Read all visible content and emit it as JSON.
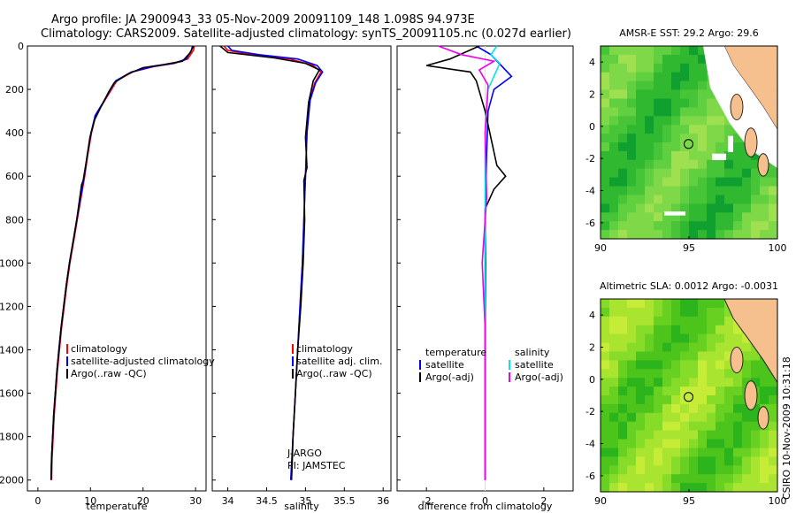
{
  "title_line1": "Argo profile: JA 2900943_33 05-Nov-2009 20091109_148 1.098S 94.973E",
  "title_line2": "Climatology: CARS2009. Satellite-adjusted climatology: synTS_20091105.nc (0.027d earlier)",
  "side_stamp": "CSIRO 10-Nov-2009 10:31:18",
  "colors": {
    "climatology": "#ff0000",
    "satellite": "#0000ff",
    "argo": "#000000",
    "salinity_satellite": "#00e5ee",
    "salinity_argo": "#ee00ee",
    "land": "#f5c08e"
  },
  "chart_data": [
    {
      "id": "temperature",
      "type": "line",
      "xlabel": "temperature",
      "xlim": [
        -2,
        32
      ],
      "ylim": [
        0,
        2050
      ],
      "xticks": [
        0,
        10,
        20,
        30
      ],
      "yticks": [
        0,
        200,
        400,
        600,
        800,
        1000,
        1200,
        1400,
        1600,
        1800,
        2000
      ],
      "legend": [
        "climatology",
        "satellite-adjusted climatology",
        "Argo(..raw -QC)"
      ],
      "series": [
        {
          "name": "climatology",
          "color": "climatology",
          "points": [
            [
              29.8,
              0
            ],
            [
              29.6,
              20
            ],
            [
              28.5,
              60
            ],
            [
              26,
              80
            ],
            [
              22,
              95
            ],
            [
              18,
              120
            ],
            [
              15,
              160
            ],
            [
              14,
              200
            ],
            [
              12.5,
              260
            ],
            [
              11,
              320
            ],
            [
              10.2,
              400
            ],
            [
              9.5,
              500
            ],
            [
              8.9,
              600
            ],
            [
              8.2,
              700
            ],
            [
              7.5,
              800
            ],
            [
              6.8,
              900
            ],
            [
              6.1,
              1000
            ],
            [
              5.5,
              1100
            ],
            [
              5.0,
              1200
            ],
            [
              4.5,
              1300
            ],
            [
              4.1,
              1400
            ],
            [
              3.7,
              1500
            ],
            [
              3.4,
              1600
            ],
            [
              3.1,
              1700
            ],
            [
              2.9,
              1800
            ],
            [
              2.7,
              1900
            ],
            [
              2.6,
              2000
            ]
          ]
        },
        {
          "name": "satellite",
          "color": "satellite",
          "points": [
            [
              29.4,
              0
            ],
            [
              29.2,
              20
            ],
            [
              28.2,
              60
            ],
            [
              25.8,
              80
            ],
            [
              21.8,
              95
            ],
            [
              17.8,
              120
            ],
            [
              14.8,
              160
            ],
            [
              13.8,
              200
            ],
            [
              12.4,
              260
            ],
            [
              10.9,
              320
            ],
            [
              10.1,
              400
            ],
            [
              9.4,
              500
            ],
            [
              8.8,
              600
            ],
            [
              8.1,
              700
            ],
            [
              7.4,
              800
            ],
            [
              6.7,
              900
            ],
            [
              6.0,
              1000
            ],
            [
              5.4,
              1100
            ],
            [
              4.9,
              1200
            ],
            [
              4.4,
              1300
            ],
            [
              4.0,
              1400
            ],
            [
              3.6,
              1500
            ],
            [
              3.3,
              1600
            ],
            [
              3.0,
              1700
            ],
            [
              2.8,
              1800
            ],
            [
              2.6,
              1900
            ],
            [
              2.5,
              2000
            ]
          ]
        },
        {
          "name": "argo",
          "color": "argo",
          "points": [
            [
              29.6,
              0
            ],
            [
              29.0,
              30
            ],
            [
              27.5,
              70
            ],
            [
              24,
              85
            ],
            [
              20,
              100
            ],
            [
              17,
              130
            ],
            [
              14.5,
              170
            ],
            [
              13.5,
              210
            ],
            [
              12,
              280
            ],
            [
              10.8,
              340
            ],
            [
              9.9,
              420
            ],
            [
              9.3,
              520
            ],
            [
              8.6,
              620
            ],
            [
              8.3,
              640
            ],
            [
              7.4,
              800
            ],
            [
              6.7,
              900
            ],
            [
              6.0,
              1000
            ],
            [
              5.4,
              1100
            ],
            [
              4.9,
              1200
            ],
            [
              4.4,
              1300
            ],
            [
              4.0,
              1400
            ],
            [
              3.6,
              1500
            ],
            [
              3.3,
              1600
            ],
            [
              3.0,
              1700
            ],
            [
              2.8,
              1800
            ],
            [
              2.6,
              1900
            ],
            [
              2.5,
              2000
            ]
          ]
        }
      ]
    },
    {
      "id": "salinity",
      "type": "line",
      "xlabel": "salinity",
      "xlim": [
        33.8,
        36.1
      ],
      "ylim": [
        0,
        2050
      ],
      "xticks": [
        34,
        34.5,
        35,
        35.5,
        36
      ],
      "yticks": [
        0,
        200,
        400,
        600,
        800,
        1000,
        1200,
        1400,
        1600,
        1800,
        2000
      ],
      "legend": [
        "climatology",
        "satellite adj. clim.",
        "Argo(..raw -QC)"
      ],
      "annotations": [
        "J-ARGO",
        "PI: JAMSTEC"
      ],
      "series": [
        {
          "name": "climatology",
          "color": "climatology",
          "points": [
            [
              33.95,
              0
            ],
            [
              34.0,
              20
            ],
            [
              34.3,
              40
            ],
            [
              34.8,
              60
            ],
            [
              35.1,
              90
            ],
            [
              35.2,
              120
            ],
            [
              35.12,
              170
            ],
            [
              35.05,
              250
            ],
            [
              35.02,
              400
            ],
            [
              35.0,
              600
            ],
            [
              34.98,
              800
            ],
            [
              34.96,
              1000
            ],
            [
              34.93,
              1200
            ],
            [
              34.9,
              1400
            ],
            [
              34.87,
              1600
            ],
            [
              34.84,
              1800
            ],
            [
              34.82,
              2000
            ]
          ]
        },
        {
          "name": "satellite",
          "color": "satellite",
          "points": [
            [
              34.0,
              0
            ],
            [
              34.05,
              20
            ],
            [
              34.4,
              40
            ],
            [
              34.9,
              60
            ],
            [
              35.15,
              90
            ],
            [
              35.22,
              120
            ],
            [
              35.13,
              170
            ],
            [
              35.06,
              250
            ],
            [
              35.02,
              400
            ],
            [
              35.0,
              600
            ],
            [
              34.98,
              800
            ],
            [
              34.96,
              1000
            ],
            [
              34.93,
              1200
            ],
            [
              34.9,
              1400
            ],
            [
              34.87,
              1600
            ],
            [
              34.84,
              1800
            ],
            [
              34.81,
              2000
            ]
          ]
        },
        {
          "name": "argo",
          "color": "argo",
          "points": [
            [
              33.9,
              0
            ],
            [
              34.0,
              30
            ],
            [
              34.6,
              55
            ],
            [
              35.0,
              80
            ],
            [
              35.18,
              110
            ],
            [
              35.1,
              160
            ],
            [
              35.04,
              260
            ],
            [
              35.0,
              420
            ],
            [
              35.02,
              560
            ],
            [
              34.98,
              620
            ],
            [
              34.99,
              800
            ],
            [
              34.97,
              1000
            ],
            [
              34.94,
              1200
            ],
            [
              34.9,
              1400
            ],
            [
              34.87,
              1600
            ],
            [
              34.84,
              1800
            ],
            [
              34.82,
              2000
            ]
          ]
        }
      ]
    },
    {
      "id": "difference",
      "type": "line",
      "xlabel": "difference from climatology",
      "xlim": [
        -3,
        3
      ],
      "ylim": [
        0,
        2050
      ],
      "xticks": [
        -2,
        0,
        2
      ],
      "yticks": [
        0,
        200,
        400,
        600,
        800,
        1000,
        1200,
        1400,
        1600,
        1800,
        2000
      ],
      "legend_temperature": {
        "title": "temperature",
        "items": [
          "satellite",
          "Argo(-adj)"
        ]
      },
      "legend_salinity": {
        "title": "salinity",
        "items": [
          "satellite",
          "Argo(-adj)"
        ]
      },
      "series": [
        {
          "name": "temperature satellite",
          "color": "satellite",
          "points": [
            [
              -0.3,
              0
            ],
            [
              0.2,
              40
            ],
            [
              0.9,
              140
            ],
            [
              0.3,
              200
            ],
            [
              0.1,
              300
            ],
            [
              0.05,
              500
            ],
            [
              0,
              800
            ],
            [
              0.02,
              1000
            ],
            [
              0,
              1400
            ],
            [
              0,
              2000
            ]
          ]
        },
        {
          "name": "temperature argo",
          "color": "argo",
          "points": [
            [
              -0.2,
              0
            ],
            [
              -1.2,
              60
            ],
            [
              -2.0,
              90
            ],
            [
              -0.5,
              120
            ],
            [
              -0.3,
              160
            ],
            [
              0,
              300
            ],
            [
              0.4,
              550
            ],
            [
              0.7,
              600
            ],
            [
              0.3,
              660
            ],
            [
              0,
              750
            ],
            [
              0,
              1500
            ],
            [
              0,
              2000
            ]
          ]
        },
        {
          "name": "salinity satellite",
          "color": "salinity_satellite",
          "points": [
            [
              0.4,
              0
            ],
            [
              0.2,
              40
            ],
            [
              0.5,
              80
            ],
            [
              0.1,
              200
            ],
            [
              0,
              400
            ],
            [
              0,
              800
            ],
            [
              0,
              1500
            ],
            [
              0,
              2000
            ]
          ]
        },
        {
          "name": "salinity argo",
          "color": "salinity_argo",
          "points": [
            [
              -1.6,
              0
            ],
            [
              -0.8,
              40
            ],
            [
              0.3,
              70
            ],
            [
              -0.2,
              110
            ],
            [
              0.1,
              180
            ],
            [
              0,
              400
            ],
            [
              0.05,
              700
            ],
            [
              -0.1,
              1000
            ],
            [
              0,
              1300
            ],
            [
              0,
              2000
            ]
          ]
        }
      ]
    },
    {
      "id": "sst_map",
      "type": "heatmap",
      "title": "AMSR-E SST: 29.2 Argo: 29.6",
      "xlim": [
        90,
        100
      ],
      "ylim": [
        -7,
        5
      ],
      "xticks": [
        90,
        95,
        100
      ],
      "yticks": [
        4,
        2,
        0,
        -2,
        -4,
        -6
      ],
      "marker": {
        "lon": 94.973,
        "lat": -1.098
      }
    },
    {
      "id": "sla_map",
      "type": "heatmap",
      "title": "Altimetric SLA: 0.0012 Argo: -0.0031",
      "xlim": [
        90,
        100
      ],
      "ylim": [
        -7,
        5
      ],
      "xticks": [
        90,
        95,
        100
      ],
      "yticks": [
        4,
        2,
        0,
        -2,
        -4,
        -6
      ],
      "marker": {
        "lon": 94.973,
        "lat": -1.098
      }
    }
  ]
}
